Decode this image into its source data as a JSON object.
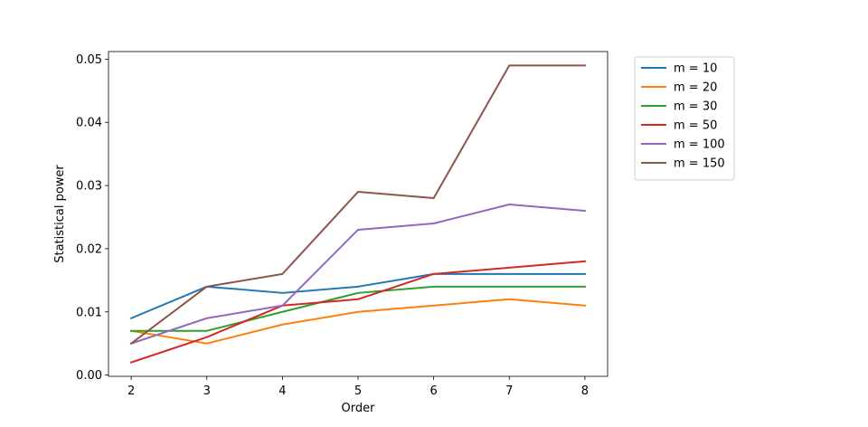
{
  "chart_data": {
    "type": "line",
    "xlabel": "Order",
    "ylabel": "Statistical power",
    "x": [
      2,
      3,
      4,
      5,
      6,
      7,
      8
    ],
    "xticks": [
      "2",
      "3",
      "4",
      "5",
      "6",
      "7",
      "8"
    ],
    "yticks": [
      "0.00",
      "0.01",
      "0.02",
      "0.03",
      "0.04",
      "0.05"
    ],
    "xlim": [
      1.7,
      8.3
    ],
    "ylim": [
      -0.0002,
      0.0512
    ],
    "grid": false,
    "legend_position": "outside upper right",
    "series": [
      {
        "name": "m = 10",
        "color": "#1f77b4",
        "values": [
          0.009,
          0.014,
          0.013,
          0.014,
          0.016,
          0.016,
          0.016
        ]
      },
      {
        "name": "m = 20",
        "color": "#ff7f0e",
        "values": [
          0.007,
          0.005,
          0.008,
          0.01,
          0.011,
          0.012,
          0.011
        ]
      },
      {
        "name": "m = 30",
        "color": "#2ca02c",
        "values": [
          0.007,
          0.007,
          0.01,
          0.013,
          0.014,
          0.014,
          0.014
        ]
      },
      {
        "name": "m = 50",
        "color": "#d62728",
        "values": [
          0.002,
          0.006,
          0.011,
          0.012,
          0.016,
          0.017,
          0.018
        ]
      },
      {
        "name": "m = 100",
        "color": "#9467bd",
        "values": [
          0.005,
          0.009,
          0.011,
          0.023,
          0.024,
          0.027,
          0.026
        ]
      },
      {
        "name": "m = 150",
        "color": "#8c564b",
        "values": [
          0.005,
          0.014,
          0.016,
          0.029,
          0.028,
          0.049,
          0.049
        ]
      }
    ]
  }
}
